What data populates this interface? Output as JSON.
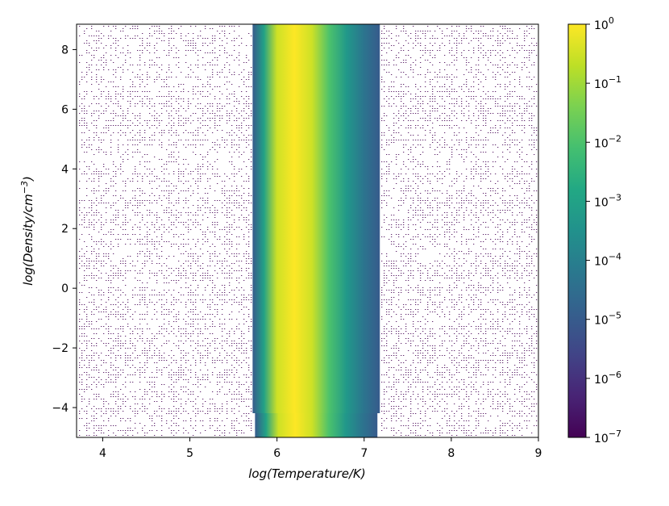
{
  "chart_data": {
    "type": "heatmap",
    "title": "",
    "xlabel": "log(Temperature/K)",
    "ylabel": "log(Density/cm^-3)",
    "xlim": [
      3.7,
      9.0
    ],
    "ylim": [
      -5.0,
      8.85
    ],
    "x_ticks": [
      4,
      5,
      6,
      7,
      8,
      9
    ],
    "y_ticks": [
      -4,
      -2,
      0,
      2,
      4,
      6,
      8
    ],
    "x_tick_labels": [
      "4",
      "5",
      "6",
      "7",
      "8",
      "9"
    ],
    "y_tick_labels": [
      "−4",
      "−2",
      "0",
      "2",
      "4",
      "6",
      "8"
    ],
    "colorscale": "viridis",
    "color_scale_type": "log",
    "color_range": [
      1e-07,
      1
    ],
    "colorbar_ticks": [
      {
        "base": "10",
        "exp": "0"
      },
      {
        "base": "10",
        "exp": "−1"
      },
      {
        "base": "10",
        "exp": "−2"
      },
      {
        "base": "10",
        "exp": "−3"
      },
      {
        "base": "10",
        "exp": "−4"
      },
      {
        "base": "10",
        "exp": "−5"
      },
      {
        "base": "10",
        "exp": "−6"
      },
      {
        "base": "10",
        "exp": "−7"
      }
    ],
    "band": {
      "description": "Value depends only on temperature; peak near log T ≈ 6.2",
      "temperature_range": [
        5.72,
        7.18
      ],
      "peak_temperature": 6.2,
      "profile": [
        {
          "logT": 5.72,
          "value": 1e-05
        },
        {
          "logT": 5.85,
          "value": 0.001
        },
        {
          "logT": 6.0,
          "value": 0.3
        },
        {
          "logT": 6.2,
          "value": 1.0
        },
        {
          "logT": 6.4,
          "value": 0.3
        },
        {
          "logT": 6.6,
          "value": 0.01
        },
        {
          "logT": 6.8,
          "value": 0.0005
        },
        {
          "logT": 7.0,
          "value": 5e-05
        },
        {
          "logT": 7.18,
          "value": 1e-05
        }
      ]
    },
    "background_noise": "sparse minimum-valued (10^-7) pixels outside the band",
    "grid": false,
    "colors": {
      "noise": "#440154",
      "axis": "#000000"
    }
  }
}
